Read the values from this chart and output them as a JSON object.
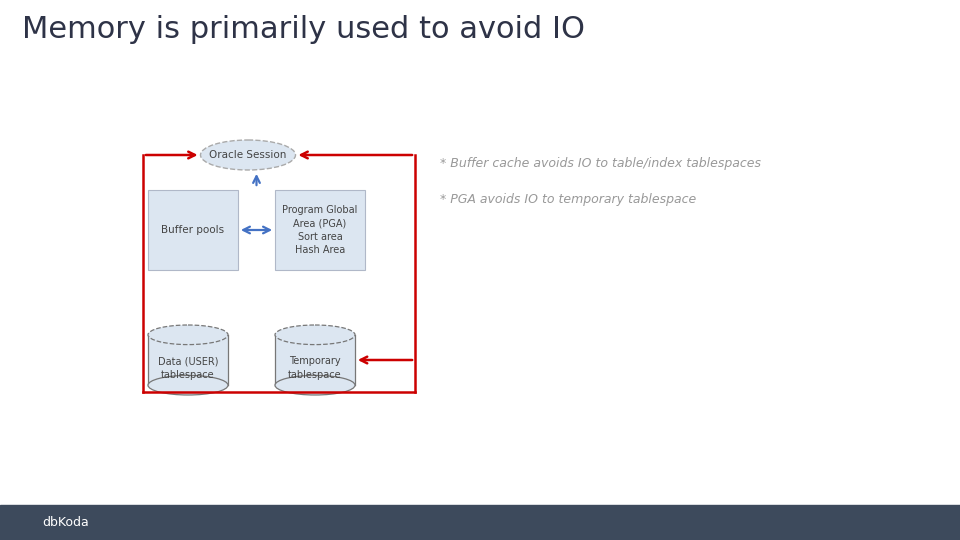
{
  "title": "Memory is primarily used to avoid IO",
  "title_fontsize": 22,
  "title_color": "#2e3347",
  "bg_color": "#ffffff",
  "footer_color": "#3d4a5c",
  "bullet1": "* Buffer cache avoids IO to table/index tablespaces",
  "bullet2": "* PGA avoids IO to temporary tablespace",
  "bullet_color": "#999999",
  "bullet_fontsize": 9,
  "oracle_session_label": "Oracle Session",
  "buffer_pools_label": "Buffer pools",
  "pga_label": "Program Global\nArea (PGA)\nSort area\nHash Area",
  "data_ts_label": "Data (USER)\ntablespace",
  "temp_ts_label": "Temporary\ntablespace",
  "box_fill": "#dce6f1",
  "box_edge": "#b0b8c8",
  "ellipse_fill": "#dce6f1",
  "ellipse_edge": "#aaaaaa",
  "cylinder_fill": "#dce6f1",
  "cylinder_edge": "#777777",
  "arrow_red": "#cc0000",
  "arrow_blue": "#4472c4",
  "label_fontsize": 7.5,
  "label_color": "#444444",
  "dbkoda_text": "dbKoda"
}
